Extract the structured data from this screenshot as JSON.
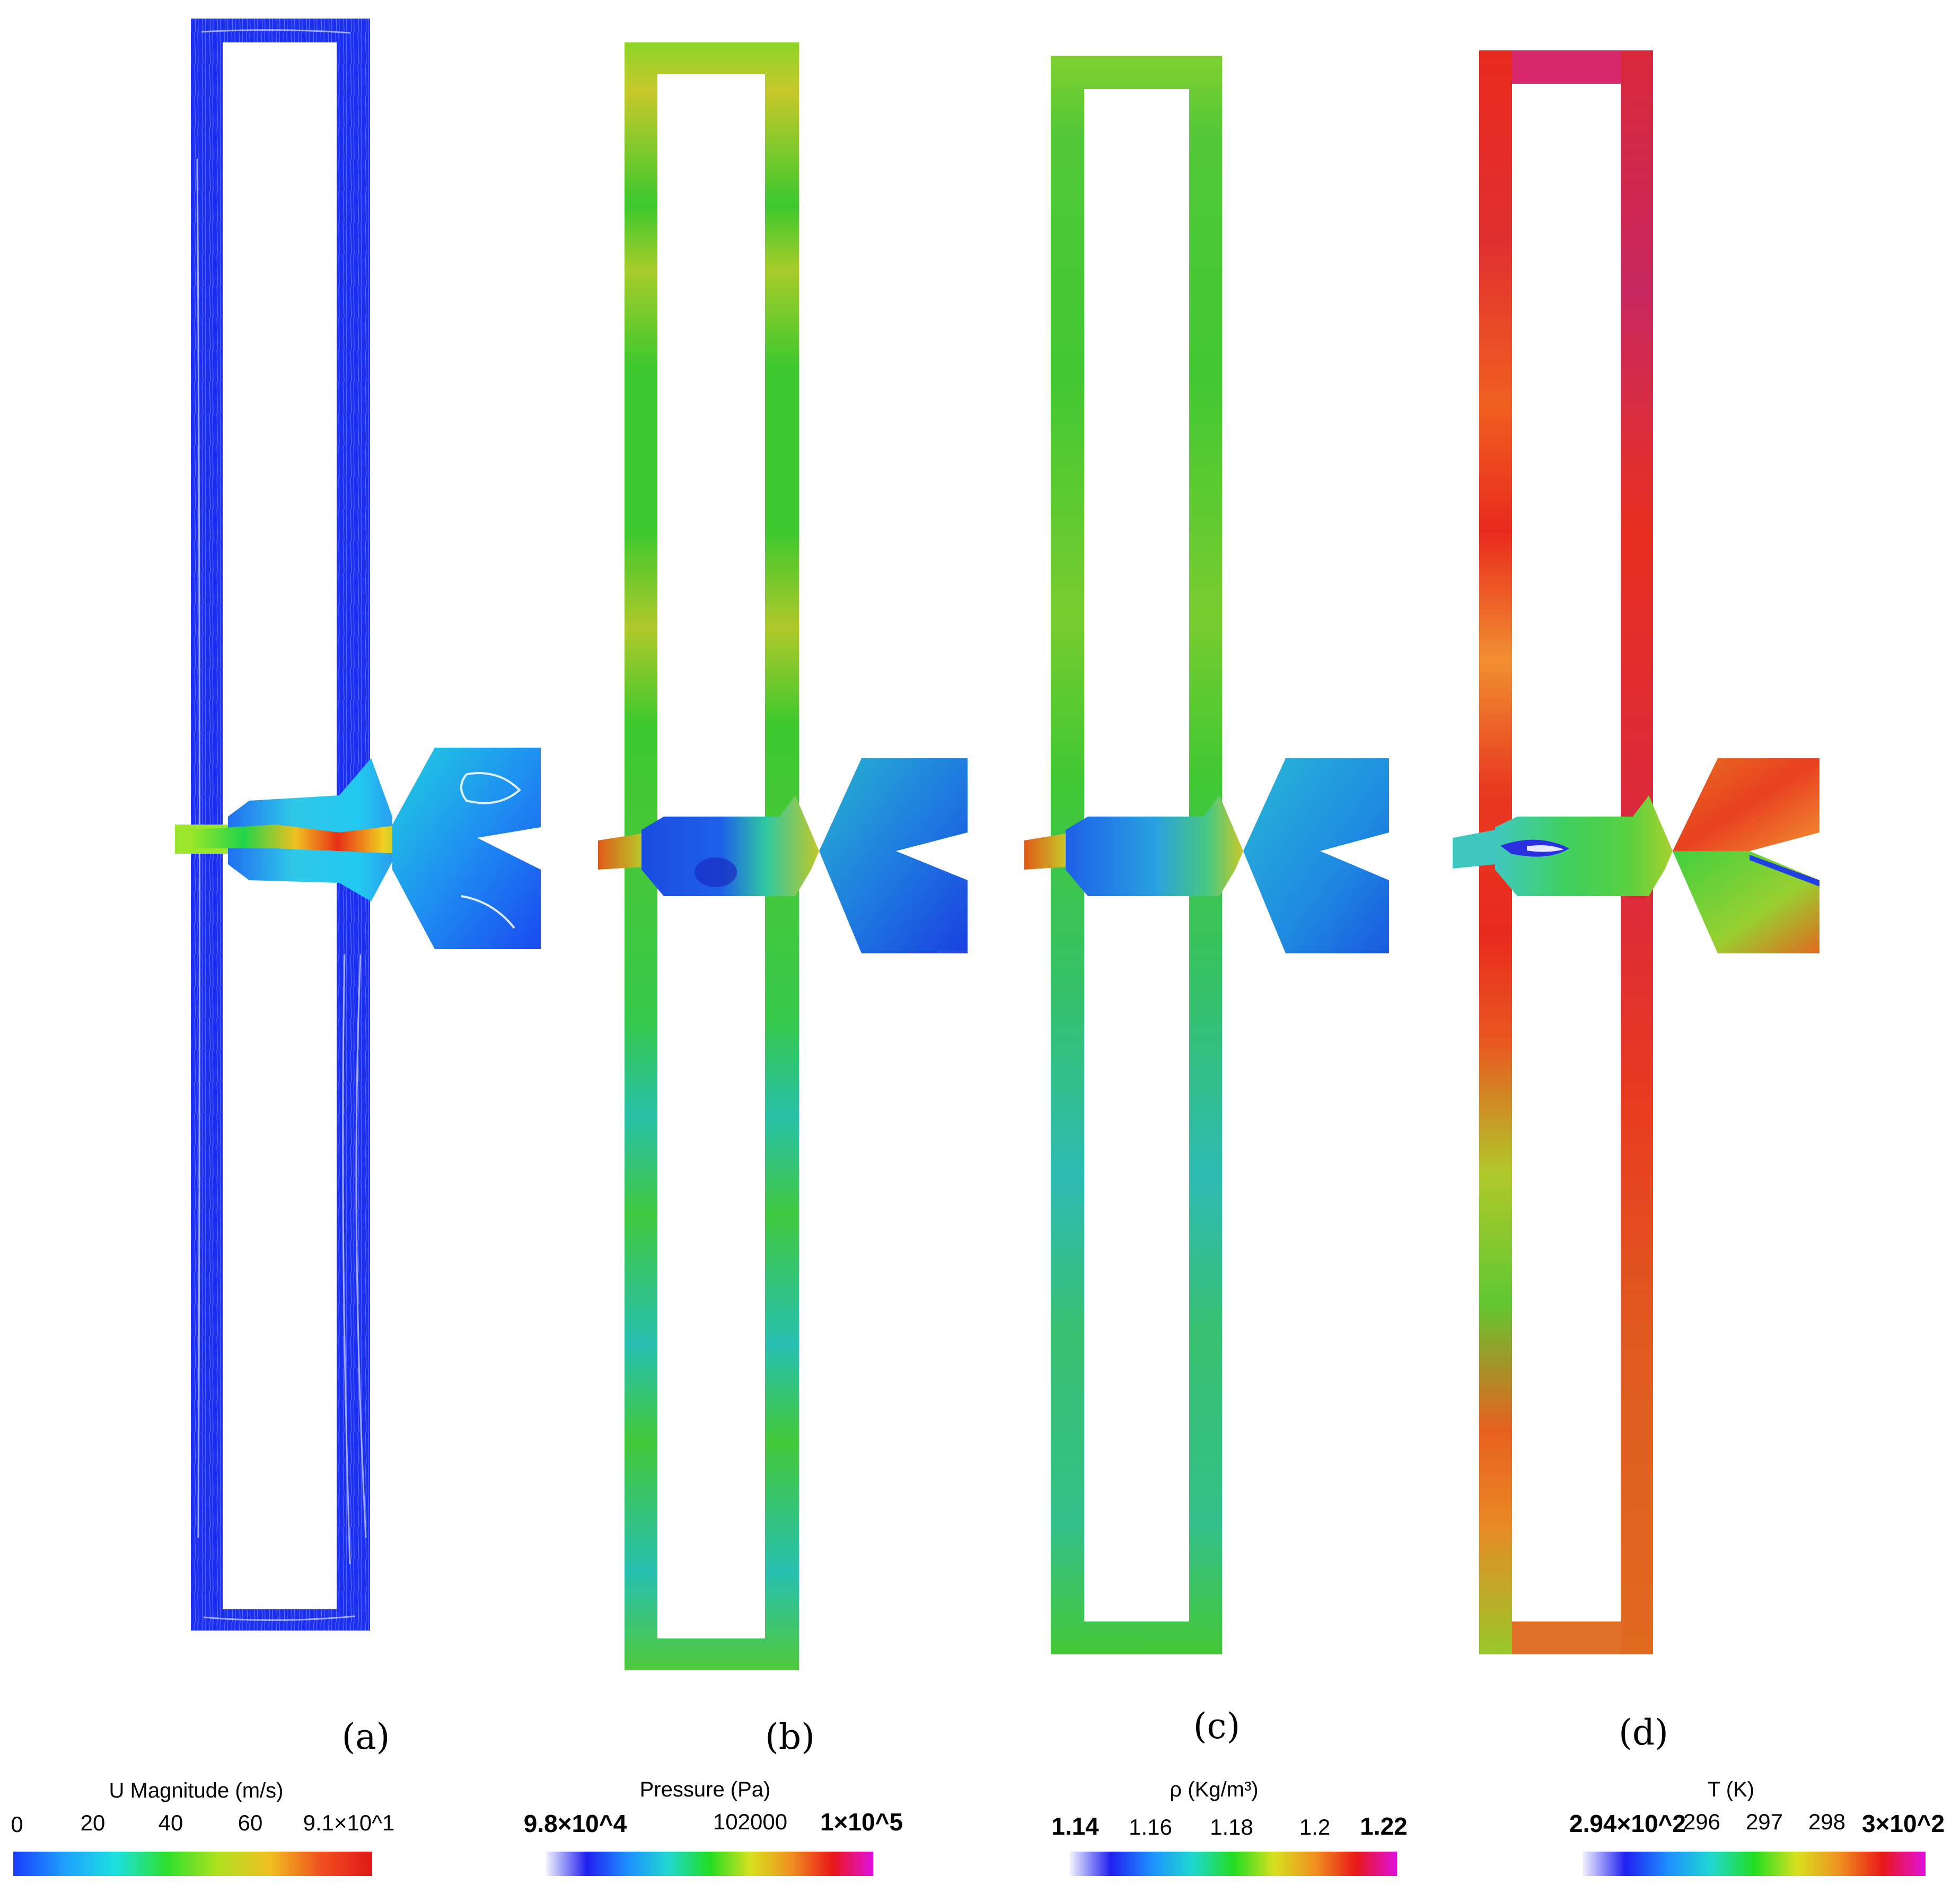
{
  "panels": [
    {
      "label": "(a)",
      "field": "velocity-streamlines"
    },
    {
      "label": "(b)",
      "field": "pressure"
    },
    {
      "label": "(c)",
      "field": "density"
    },
    {
      "label": "(d)",
      "field": "temperature"
    }
  ],
  "colorbars": [
    {
      "title": "U Magnitude (m/s)",
      "ticks": [
        "0",
        "20",
        "40",
        "60",
        "9.1×10^1"
      ],
      "colors": [
        "#1a3cff",
        "#20a0ff",
        "#1de0e0",
        "#2de02d",
        "#b0e020",
        "#f0c020",
        "#f05020",
        "#e01818"
      ]
    },
    {
      "title": "Pressure (Pa)",
      "ticks": [
        "9.8×10^4",
        "102000",
        "1×10^5"
      ],
      "colors": [
        "#f2f2ff",
        "#2020f0",
        "#1e90ff",
        "#20d8d0",
        "#22dd22",
        "#d8e020",
        "#f09020",
        "#e81818",
        "#e010e0"
      ]
    },
    {
      "title": "ρ (Kg/m³)",
      "ticks": [
        "1.14",
        "1.16",
        "1.18",
        "1.2",
        "1.22"
      ],
      "colors": [
        "#f2f2ff",
        "#2020f0",
        "#1e90ff",
        "#20d8d0",
        "#22dd22",
        "#d8e020",
        "#f09020",
        "#e81818",
        "#e010e0"
      ]
    },
    {
      "title": "T (K)",
      "ticks": [
        "2.94×10^2",
        "296",
        "297",
        "298",
        "3×10^2"
      ],
      "colors": [
        "#f2f2ff",
        "#2020f0",
        "#1e90ff",
        "#20d8d0",
        "#22dd22",
        "#d8e020",
        "#f09020",
        "#e81818",
        "#e010e0"
      ]
    }
  ],
  "colors": {
    "velocity_base": "#1a2fef",
    "pressure_base": "#3cc82e",
    "density_base": "#42c832",
    "temperature_base": "#e82a1e",
    "mixing_low": "#1e5adc",
    "mixing_mid": "#28b4e0"
  }
}
